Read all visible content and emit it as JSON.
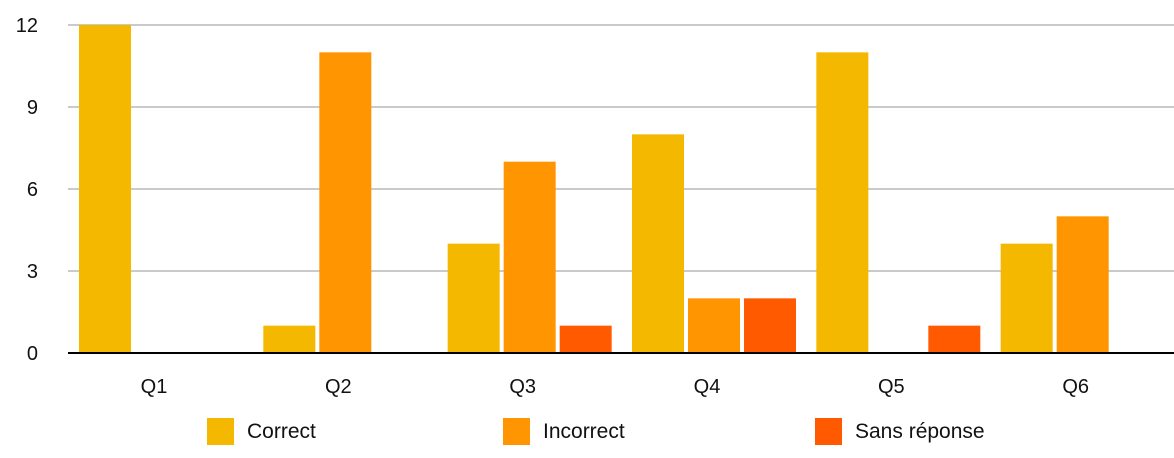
{
  "chart_data": {
    "type": "bar",
    "title": "",
    "xlabel": "",
    "ylabel": "",
    "categories": [
      "Q1",
      "Q2",
      "Q3",
      "Q4",
      "Q5",
      "Q6"
    ],
    "series": [
      {
        "name": "Correct",
        "color": "#F5B800",
        "values": [
          12,
          1,
          4,
          8,
          11,
          4
        ]
      },
      {
        "name": "Incorrect",
        "color": "#FF9500",
        "values": [
          0,
          11,
          7,
          2,
          0,
          5
        ]
      },
      {
        "name": "Sans réponse",
        "color": "#FF5A00",
        "values": [
          0,
          0,
          1,
          2,
          1,
          0
        ]
      }
    ],
    "ylim": [
      0,
      12
    ],
    "yticks": [
      0,
      3,
      6,
      9,
      12
    ],
    "grid": true,
    "legend_position": "bottom"
  }
}
